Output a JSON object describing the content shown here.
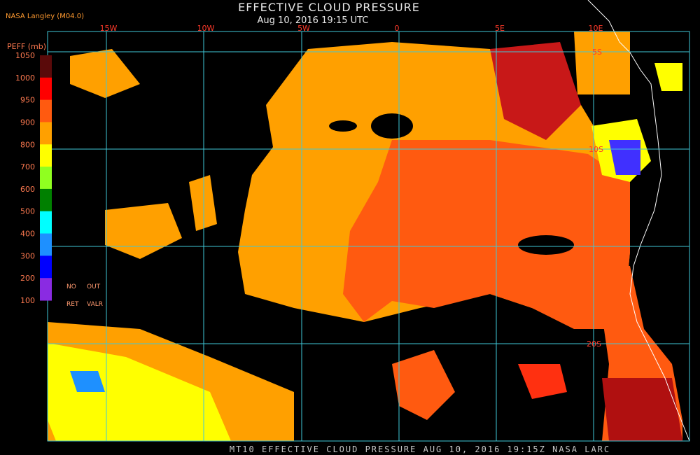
{
  "header": {
    "source": "NASA Langley (M04.0)",
    "title": "EFFECTIVE CLOUD PRESSURE",
    "subtitle": "Aug 10, 2016 19:15 UTC"
  },
  "map": {
    "longitude_labels": [
      "15W",
      "10W",
      "5W",
      "0",
      "5E",
      "10E"
    ],
    "latitude_labels": [
      "5S",
      "10S",
      "20S"
    ]
  },
  "legend": {
    "title": "PEFF (mb)",
    "labels": [
      1050,
      1000,
      950,
      900,
      800,
      700,
      600,
      500,
      400,
      300,
      200,
      100
    ],
    "colors": [
      "#5a0a0a",
      "#ff0000",
      "#ff5a10",
      "#ffa000",
      "#ffff00",
      "#90ff20",
      "#008000",
      "#00ffff",
      "#1e90ff",
      "#0000ff",
      "#8a2be2"
    ],
    "notes": [
      "NO",
      "OUT",
      "RET",
      "VALR"
    ]
  },
  "footer": "MT10  EFFECTIVE CLOUD PRESSURE  AUG 10, 2016 19:15Z  NASA LARC"
}
